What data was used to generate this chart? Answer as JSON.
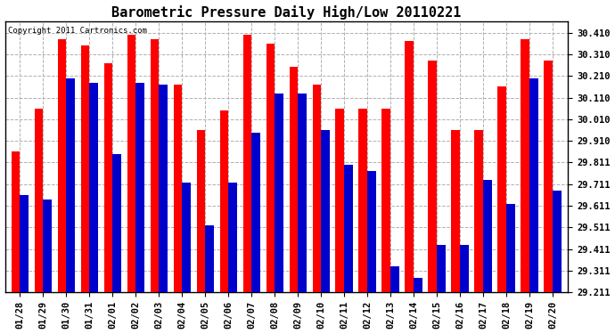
{
  "title": "Barometric Pressure Daily High/Low 20110221",
  "copyright": "Copyright 2011 Cartronics.com",
  "dates": [
    "01/28",
    "01/29",
    "01/30",
    "01/31",
    "02/01",
    "02/02",
    "02/03",
    "02/04",
    "02/05",
    "02/06",
    "02/07",
    "02/08",
    "02/09",
    "02/10",
    "02/11",
    "02/12",
    "02/13",
    "02/14",
    "02/15",
    "02/16",
    "02/17",
    "02/18",
    "02/19",
    "02/20"
  ],
  "highs": [
    29.86,
    30.06,
    30.38,
    30.35,
    30.27,
    30.4,
    30.38,
    30.17,
    29.96,
    30.05,
    30.4,
    30.36,
    30.25,
    30.17,
    30.06,
    30.06,
    30.06,
    30.37,
    30.28,
    29.96,
    29.96,
    30.16,
    30.38,
    30.28
  ],
  "lows": [
    29.66,
    29.64,
    30.2,
    30.18,
    29.85,
    30.18,
    30.17,
    29.72,
    29.52,
    29.72,
    29.95,
    30.13,
    30.13,
    29.96,
    29.8,
    29.77,
    29.33,
    29.28,
    29.43,
    29.43,
    29.73,
    29.62,
    30.2,
    29.68
  ],
  "bar_color_high": "#ff0000",
  "bar_color_low": "#0000cc",
  "background_color": "#ffffff",
  "grid_color": "#b0b0b0",
  "ylim_min": 29.211,
  "ylim_max": 30.461,
  "yticks": [
    29.211,
    29.311,
    29.411,
    29.511,
    29.611,
    29.711,
    29.811,
    29.91,
    30.01,
    30.11,
    30.21,
    30.31,
    30.41
  ],
  "ytick_labels": [
    "29.211",
    "29.311",
    "29.411",
    "29.511",
    "29.611",
    "29.711",
    "29.811",
    "29.910",
    "30.010",
    "30.110",
    "30.210",
    "30.310",
    "30.410"
  ],
  "title_fontsize": 11,
  "tick_fontsize": 7.5,
  "copyright_fontsize": 6.5
}
